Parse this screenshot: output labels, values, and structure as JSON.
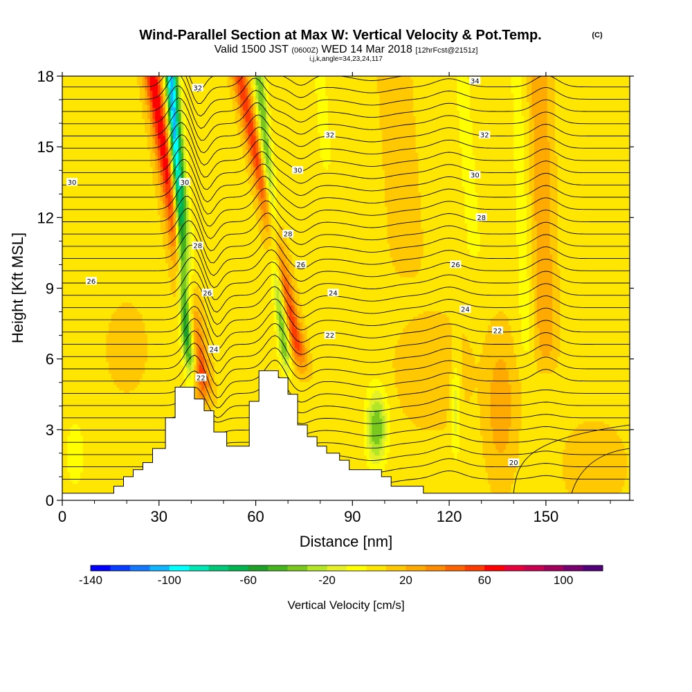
{
  "figure": {
    "title": "Wind-Parallel Section at Max W: Vertical Velocity & Pot.Temp.",
    "title_units": "(C)",
    "subtitle_prefix": "Valid 1500 JST",
    "subtitle_zulu": "(0600Z)",
    "subtitle_date": "WED 14 Mar 2018",
    "subtitle_fcst": "[12hrFcst@2151z]",
    "index_line": "i,j,k,angle=34,23,24,117"
  },
  "chart_data": {
    "type": "heatmap",
    "title": "Wind-Parallel Section at Max W: Vertical Velocity & Pot.Temp.",
    "xlabel": "Distance [nm]",
    "ylabel": "Height [Kft MSL]",
    "xlim": [
      0,
      176
    ],
    "ylim": [
      0,
      18
    ],
    "x_ticks": [
      0,
      30,
      60,
      90,
      120,
      150
    ],
    "y_ticks": [
      0,
      3,
      6,
      9,
      12,
      15,
      18
    ],
    "colorbar": {
      "label": "Vertical Velocity [cm/s]",
      "min": -140,
      "max": 110,
      "step": 10,
      "tick_labels": [
        -140,
        -100,
        -60,
        -20,
        20,
        60,
        100
      ],
      "colors": [
        "#0000ff",
        "#0a3cff",
        "#1478ff",
        "#10b4ff",
        "#00ffff",
        "#00e6b4",
        "#00c878",
        "#00b450",
        "#1ea028",
        "#46b41e",
        "#7ac81e",
        "#b4e628",
        "#e6f028",
        "#ffff00",
        "#ffe600",
        "#ffc800",
        "#ffaa00",
        "#ff8c00",
        "#ff6400",
        "#ff3c00",
        "#ff0000",
        "#e6003c",
        "#c80050",
        "#a0005a",
        "#78006e",
        "#500078"
      ]
    },
    "vertical_velocity_features": [
      {
        "kind": "updraft",
        "base": [
          43,
          4.6
        ],
        "top": [
          28,
          18
        ],
        "w_cms": 60
      },
      {
        "kind": "downdraft",
        "base": [
          41,
          5.0
        ],
        "top": [
          33,
          18
        ],
        "w_cms": -110
      },
      {
        "kind": "updraft",
        "base": [
          74,
          5.8
        ],
        "top": [
          55,
          18
        ],
        "w_cms": 50
      },
      {
        "kind": "downdraft",
        "base": [
          70,
          5.6
        ],
        "top": [
          61,
          18
        ],
        "w_cms": -50
      },
      {
        "kind": "downdraft",
        "center": [
          98,
          3.0
        ],
        "w_cms": -40
      },
      {
        "kind": "updraft",
        "center": [
          136,
          4.0
        ],
        "w_cms": 20
      },
      {
        "kind": "downdraft",
        "center": [
          125,
          4.0
        ],
        "w_cms": -20
      }
    ],
    "terrain": [
      {
        "x": 0,
        "h": 0.3
      },
      {
        "x": 16,
        "h": 0.3
      },
      {
        "x": 16,
        "h": 0.6
      },
      {
        "x": 19,
        "h": 0.6
      },
      {
        "x": 19,
        "h": 1.0
      },
      {
        "x": 22,
        "h": 1.0
      },
      {
        "x": 22,
        "h": 1.3
      },
      {
        "x": 25,
        "h": 1.3
      },
      {
        "x": 25,
        "h": 1.6
      },
      {
        "x": 28,
        "h": 1.6
      },
      {
        "x": 28,
        "h": 2.2
      },
      {
        "x": 32,
        "h": 2.2
      },
      {
        "x": 32,
        "h": 3.5
      },
      {
        "x": 35,
        "h": 3.5
      },
      {
        "x": 35,
        "h": 4.8
      },
      {
        "x": 41,
        "h": 4.8
      },
      {
        "x": 41,
        "h": 4.3
      },
      {
        "x": 44,
        "h": 4.3
      },
      {
        "x": 44,
        "h": 3.8
      },
      {
        "x": 47,
        "h": 3.8
      },
      {
        "x": 47,
        "h": 2.9
      },
      {
        "x": 51,
        "h": 2.9
      },
      {
        "x": 51,
        "h": 2.3
      },
      {
        "x": 58,
        "h": 2.3
      },
      {
        "x": 58,
        "h": 4.2
      },
      {
        "x": 61,
        "h": 4.2
      },
      {
        "x": 61,
        "h": 5.5
      },
      {
        "x": 67,
        "h": 5.5
      },
      {
        "x": 67,
        "h": 5.2
      },
      {
        "x": 70,
        "h": 5.2
      },
      {
        "x": 70,
        "h": 4.5
      },
      {
        "x": 73,
        "h": 4.5
      },
      {
        "x": 73,
        "h": 3.2
      },
      {
        "x": 76,
        "h": 3.2
      },
      {
        "x": 76,
        "h": 2.7
      },
      {
        "x": 79,
        "h": 2.7
      },
      {
        "x": 79,
        "h": 2.3
      },
      {
        "x": 82,
        "h": 2.3
      },
      {
        "x": 82,
        "h": 2.0
      },
      {
        "x": 86,
        "h": 2.0
      },
      {
        "x": 86,
        "h": 1.7
      },
      {
        "x": 89,
        "h": 1.7
      },
      {
        "x": 89,
        "h": 1.3
      },
      {
        "x": 99,
        "h": 1.3
      },
      {
        "x": 99,
        "h": 1.0
      },
      {
        "x": 102,
        "h": 1.0
      },
      {
        "x": 102,
        "h": 0.6
      },
      {
        "x": 112,
        "h": 0.6
      },
      {
        "x": 112,
        "h": 0.3
      },
      {
        "x": 176,
        "h": 0.3
      }
    ],
    "theta_contour_labels": [
      {
        "text": "34",
        "x": 128,
        "y": 17.8
      },
      {
        "text": "32",
        "x": 42,
        "y": 17.5
      },
      {
        "text": "32",
        "x": 83,
        "y": 15.5
      },
      {
        "text": "32",
        "x": 131,
        "y": 15.5
      },
      {
        "text": "30",
        "x": 3,
        "y": 13.5
      },
      {
        "text": "30",
        "x": 38,
        "y": 13.5
      },
      {
        "text": "30",
        "x": 73,
        "y": 14.0
      },
      {
        "text": "30",
        "x": 128,
        "y": 13.8
      },
      {
        "text": "28",
        "x": 130,
        "y": 12.0
      },
      {
        "text": "28",
        "x": 70,
        "y": 11.3
      },
      {
        "text": "28",
        "x": 42,
        "y": 10.8
      },
      {
        "text": "26",
        "x": 9,
        "y": 9.3
      },
      {
        "text": "26",
        "x": 74,
        "y": 10.0
      },
      {
        "text": "26",
        "x": 122,
        "y": 10.0
      },
      {
        "text": "26",
        "x": 45,
        "y": 8.8
      },
      {
        "text": "24",
        "x": 84,
        "y": 8.8
      },
      {
        "text": "24",
        "x": 125,
        "y": 8.1
      },
      {
        "text": "22",
        "x": 83,
        "y": 7.0
      },
      {
        "text": "22",
        "x": 135,
        "y": 7.2
      },
      {
        "text": "24",
        "x": 47,
        "y": 6.4
      },
      {
        "text": "22",
        "x": 43,
        "y": 5.2
      },
      {
        "text": "20",
        "x": 140,
        "y": 1.6
      }
    ]
  }
}
